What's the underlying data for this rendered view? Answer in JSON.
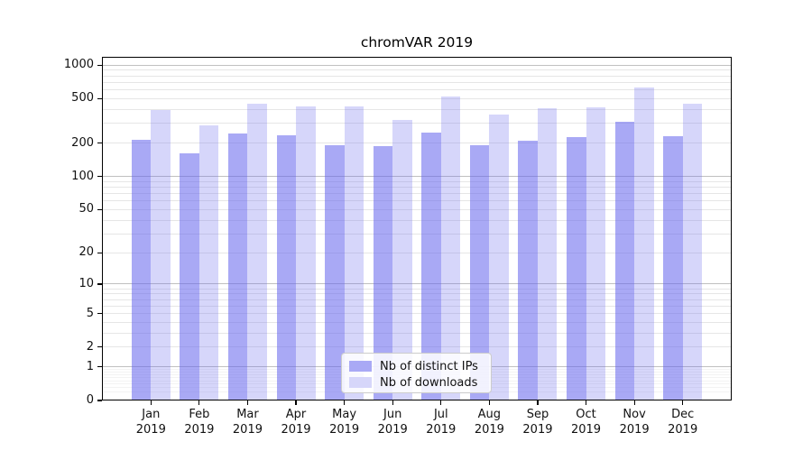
{
  "chart_data": {
    "type": "bar",
    "title": "chromVAR 2019",
    "year": "2019",
    "categories": [
      "Jan",
      "Feb",
      "Mar",
      "Apr",
      "May",
      "Jun",
      "Jul",
      "Aug",
      "Sep",
      "Oct",
      "Nov",
      "Dec"
    ],
    "series": [
      {
        "name": "Nb of distinct IPs",
        "color": "rgba(102,102,238,0.56)",
        "swatch": "#a9a9f5",
        "values": [
          213,
          162,
          246,
          233,
          190,
          188,
          250,
          192,
          211,
          225,
          313,
          230
        ]
      },
      {
        "name": "Nb of downloads",
        "color": "rgba(102,102,238,0.27)",
        "swatch": "#d6d6fa",
        "values": [
          394,
          290,
          452,
          428,
          430,
          325,
          520,
          362,
          412,
          416,
          627,
          448
        ]
      }
    ],
    "yticks": [
      0,
      1,
      2,
      5,
      10,
      20,
      50,
      100,
      200,
      500,
      1000
    ],
    "scale": "log10(1+v)",
    "ylim": [
      0,
      1237
    ],
    "grid": {
      "major": [
        1,
        10,
        100,
        1000
      ],
      "minor": [
        2,
        3,
        4,
        5,
        6,
        7,
        8,
        9,
        20,
        30,
        40,
        50,
        60,
        70,
        80,
        90,
        200,
        300,
        400,
        500,
        600,
        700,
        800,
        900
      ],
      "subminor": [
        0.2,
        0.3,
        0.4,
        0.5,
        0.6,
        0.7,
        0.8,
        0.9
      ]
    },
    "legend_position": "lower center",
    "xlabel": "",
    "ylabel": ""
  },
  "colors": {
    "grid_major": "#c0c0c0",
    "grid_minor": "#e6e6e6",
    "grid_subminor": "#f3f3f3",
    "axis": "#000000",
    "background": "#ffffff",
    "bar_base": "#6666ee"
  }
}
